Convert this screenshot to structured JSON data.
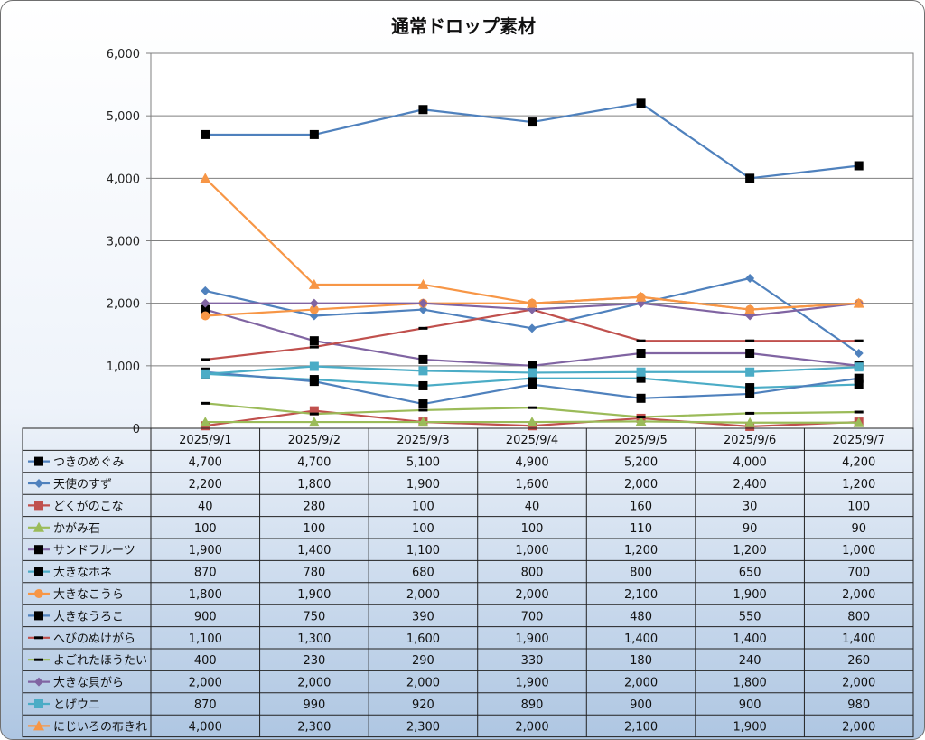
{
  "chart_data": {
    "type": "line",
    "title": "通常ドロップ素材",
    "xlabel": "",
    "ylabel": "",
    "ylim": [
      0,
      6000
    ],
    "yticks": [
      "0",
      "1,000",
      "2,000",
      "3,000",
      "4,000",
      "5,000",
      "6,000"
    ],
    "grid": true,
    "legend": "data-table",
    "categories": [
      "2025/9/1",
      "2025/9/2",
      "2025/9/3",
      "2025/9/4",
      "2025/9/5",
      "2025/9/6",
      "2025/9/7"
    ],
    "series": [
      {
        "name": "つきのめぐみ",
        "color": "#4f81bd",
        "marker": "square-black",
        "values": [
          4700,
          4700,
          5100,
          4900,
          5200,
          4000,
          4200
        ],
        "labels": [
          "4,700",
          "4,700",
          "5,100",
          "4,900",
          "5,200",
          "4,000",
          "4,200"
        ]
      },
      {
        "name": "天使のすず",
        "color": "#4f81bd",
        "marker": "diamond",
        "values": [
          2200,
          1800,
          1900,
          1600,
          2000,
          2400,
          1200
        ],
        "labels": [
          "2,200",
          "1,800",
          "1,900",
          "1,600",
          "2,000",
          "2,400",
          "1,200"
        ]
      },
      {
        "name": "どくがのこな",
        "color": "#c0504d",
        "marker": "square",
        "values": [
          40,
          280,
          100,
          40,
          160,
          30,
          100
        ],
        "labels": [
          "40",
          "280",
          "100",
          "40",
          "160",
          "30",
          "100"
        ]
      },
      {
        "name": "かがみ石",
        "color": "#9bbb59",
        "marker": "triangle",
        "values": [
          100,
          100,
          100,
          100,
          110,
          90,
          90
        ],
        "labels": [
          "100",
          "100",
          "100",
          "100",
          "110",
          "90",
          "90"
        ]
      },
      {
        "name": "サンドフルーツ",
        "color": "#8064a2",
        "marker": "square-black",
        "values": [
          1900,
          1400,
          1100,
          1000,
          1200,
          1200,
          1000
        ],
        "labels": [
          "1,900",
          "1,400",
          "1,100",
          "1,000",
          "1,200",
          "1,200",
          "1,000"
        ]
      },
      {
        "name": "大きなホネ",
        "color": "#4bacc6",
        "marker": "square-black",
        "values": [
          870,
          780,
          680,
          800,
          800,
          650,
          700
        ],
        "labels": [
          "870",
          "780",
          "680",
          "800",
          "800",
          "650",
          "700"
        ]
      },
      {
        "name": "大きなこうら",
        "color": "#f79646",
        "marker": "circle",
        "values": [
          1800,
          1900,
          2000,
          2000,
          2100,
          1900,
          2000
        ],
        "labels": [
          "1,800",
          "1,900",
          "2,000",
          "2,000",
          "2,100",
          "1,900",
          "2,000"
        ]
      },
      {
        "name": "大きなうろこ",
        "color": "#4f81bd",
        "marker": "square-black",
        "values": [
          900,
          750,
          390,
          700,
          480,
          550,
          800
        ],
        "labels": [
          "900",
          "750",
          "390",
          "700",
          "480",
          "550",
          "800"
        ]
      },
      {
        "name": "へびのぬけがら",
        "color": "#c0504d",
        "marker": "dash-black",
        "values": [
          1100,
          1300,
          1600,
          1900,
          1400,
          1400,
          1400
        ],
        "labels": [
          "1,100",
          "1,300",
          "1,600",
          "1,900",
          "1,400",
          "1,400",
          "1,400"
        ]
      },
      {
        "name": "よごれたほうたい",
        "color": "#9bbb59",
        "marker": "dash-black",
        "values": [
          400,
          230,
          290,
          330,
          180,
          240,
          260
        ],
        "labels": [
          "400",
          "230",
          "290",
          "330",
          "180",
          "240",
          "260"
        ]
      },
      {
        "name": "大きな貝がら",
        "color": "#8064a2",
        "marker": "diamond",
        "values": [
          2000,
          2000,
          2000,
          1900,
          2000,
          1800,
          2000
        ],
        "labels": [
          "2,000",
          "2,000",
          "2,000",
          "1,900",
          "2,000",
          "1,800",
          "2,000"
        ]
      },
      {
        "name": "とげウニ",
        "color": "#4bacc6",
        "marker": "square",
        "values": [
          870,
          990,
          920,
          890,
          900,
          900,
          980
        ],
        "labels": [
          "870",
          "990",
          "920",
          "890",
          "900",
          "900",
          "980"
        ]
      },
      {
        "name": "にじいろの布きれ",
        "color": "#f79646",
        "marker": "triangle",
        "values": [
          4000,
          2300,
          2300,
          2000,
          2100,
          1900,
          2000
        ],
        "labels": [
          "4,000",
          "2,300",
          "2,300",
          "2,000",
          "2,100",
          "1,900",
          "2,000"
        ]
      }
    ]
  }
}
